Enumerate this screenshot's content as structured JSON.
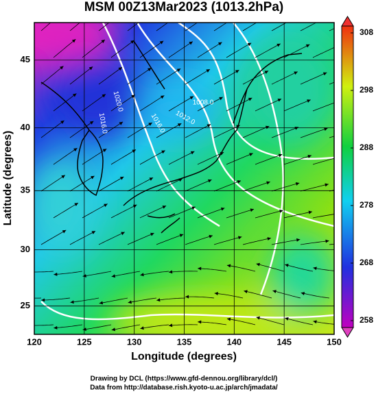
{
  "title": "MSM 00Z13Mar2023 (1013.2hPa)",
  "x_axis": {
    "label": "Longitude (degrees)",
    "lim": [
      120,
      150
    ],
    "ticks": [
      120,
      125,
      130,
      135,
      140,
      145,
      150
    ]
  },
  "y_axis": {
    "label": "Latitude  (degrees)",
    "lim": [
      22.4,
      47.6
    ],
    "ticks": [
      25,
      30,
      35,
      40,
      45
    ]
  },
  "colorbar": {
    "lim": [
      258,
      308
    ],
    "ticks": [
      258,
      268,
      278,
      288,
      298,
      308
    ]
  },
  "contour_labels": [
    "1020.0",
    "1016.0",
    "1012.0",
    "1008.0",
    "1016.0"
  ],
  "credits": [
    "Drawing by DCL (https://www.gfd-dennou.org/library/dcl/)",
    "Data from http://database.rish.kyoto-u.ac.jp/arch/jmadata/"
  ]
}
